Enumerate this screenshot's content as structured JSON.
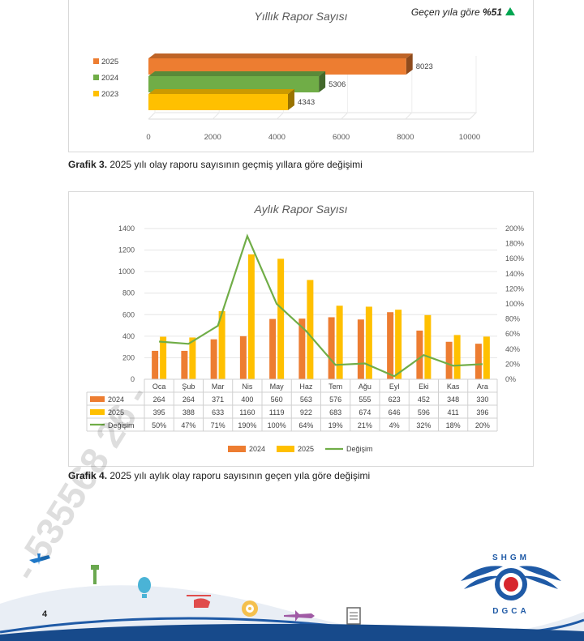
{
  "annual_chart": {
    "title": "Yıllık Rapor Sayısı",
    "growth_label": "Geçen yıla göre",
    "growth_value": "%51",
    "growth_color": "#00a651",
    "chart_data": {
      "type": "bar",
      "orientation": "horizontal",
      "categories": [
        "2025",
        "2024",
        "2023"
      ],
      "values": [
        8023,
        5306,
        4343
      ],
      "colors": [
        "#ed7d31",
        "#70ad47",
        "#ffc000"
      ],
      "xlim": [
        0,
        10000
      ],
      "xticks": [
        0,
        2000,
        4000,
        6000,
        8000,
        10000
      ],
      "legend": "left"
    }
  },
  "caption3": {
    "label": "Grafik 3.",
    "text": " 2025 yılı olay raporu sayısının geçmiş yıllara göre değişimi"
  },
  "monthly_chart": {
    "title": "Aylık Rapor Sayısı",
    "chart_data": {
      "type": "bar",
      "categories": [
        "Oca",
        "Şub",
        "Mar",
        "Nis",
        "May",
        "Haz",
        "Tem",
        "Ağu",
        "Eyl",
        "Eki",
        "Kas",
        "Ara"
      ],
      "series": [
        {
          "name": "2024",
          "type": "bar",
          "color": "#ed7d31",
          "values": [
            264,
            264,
            371,
            400,
            560,
            563,
            576,
            555,
            623,
            452,
            348,
            330
          ]
        },
        {
          "name": "2025",
          "type": "bar",
          "color": "#ffc000",
          "values": [
            395,
            388,
            633,
            1160,
            1119,
            922,
            683,
            674,
            646,
            596,
            411,
            396
          ]
        },
        {
          "name": "Değişim",
          "type": "line",
          "axis": "right",
          "color": "#70ad47",
          "values": [
            50,
            47,
            71,
            190,
            100,
            64,
            19,
            21,
            4,
            32,
            18,
            20
          ]
        }
      ],
      "ylim": [
        0,
        1400
      ],
      "yticks": [
        0,
        200,
        400,
        600,
        800,
        1000,
        1200,
        1400
      ],
      "y2lim": [
        0,
        200
      ],
      "y2ticks": [
        "0%",
        "20%",
        "40%",
        "60%",
        "80%",
        "100%",
        "120%",
        "140%",
        "160%",
        "180%",
        "200%"
      ],
      "table_rows": [
        {
          "name": "2024",
          "cells": [
            "264",
            "264",
            "371",
            "400",
            "560",
            "563",
            "576",
            "555",
            "623",
            "452",
            "348",
            "330"
          ]
        },
        {
          "name": "2025",
          "cells": [
            "395",
            "388",
            "633",
            "1160",
            "1119",
            "922",
            "683",
            "674",
            "646",
            "596",
            "411",
            "396"
          ]
        },
        {
          "name": "Değişim",
          "cells": [
            "50%",
            "47%",
            "71%",
            "190%",
            "100%",
            "64%",
            "19%",
            "21%",
            "4%",
            "32%",
            "18%",
            "20%"
          ]
        }
      ],
      "legend": "bottom",
      "legend_items": [
        "2024",
        "2025",
        "Değişim"
      ]
    }
  },
  "caption4": {
    "label": "Grafik 4.",
    "text": " 2025 yılı aylık olay raporu sayısının geçen yıla göre değişimi"
  },
  "footer": {
    "page_number": "4",
    "logo_text_top": "SHGM",
    "logo_text_bottom": "DGCA"
  },
  "watermark": "- 535568 26 -"
}
